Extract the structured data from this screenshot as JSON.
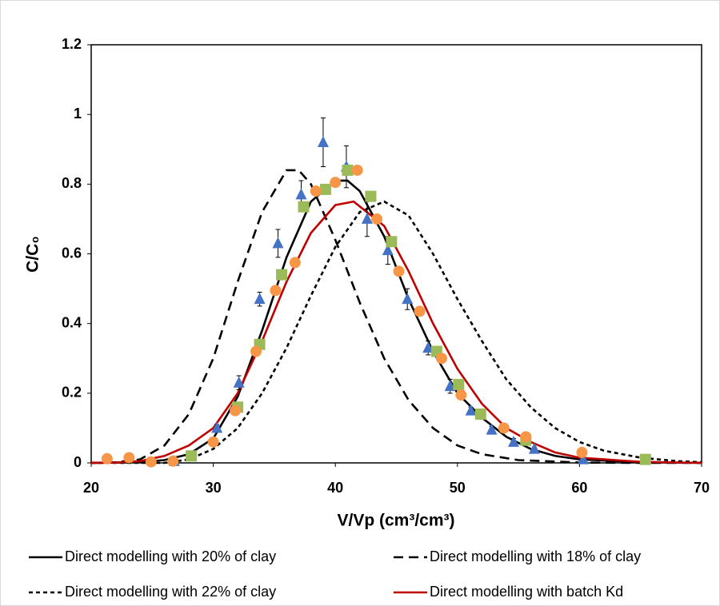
{
  "chart_data": {
    "type": "scatter-line",
    "xlabel": "V/Vp (cm³/cm³)",
    "ylabel": "C/C₀",
    "xlim": [
      20,
      70
    ],
    "xticks": [
      20,
      30,
      40,
      50,
      60,
      70
    ],
    "ylim": [
      0,
      1.2
    ],
    "yticks": [
      0,
      0.2,
      0.4,
      0.6,
      0.8,
      1,
      1.2
    ],
    "legend": "bottom",
    "series": [
      {
        "name": "Direct modelling with 20% of clay",
        "kind": "line",
        "dash": "solid",
        "color": "#000000",
        "x": [
          20,
          24,
          26,
          28,
          30,
          32,
          34,
          36,
          38,
          40,
          41,
          42,
          44,
          46,
          48,
          50,
          52,
          54,
          56,
          58,
          60,
          65,
          70
        ],
        "values": [
          0,
          0.002,
          0.008,
          0.025,
          0.07,
          0.19,
          0.38,
          0.59,
          0.75,
          0.81,
          0.81,
          0.78,
          0.65,
          0.47,
          0.32,
          0.2,
          0.13,
          0.075,
          0.04,
          0.02,
          0.01,
          0.002,
          0
        ]
      },
      {
        "name": "Direct modelling with 18% of clay",
        "kind": "line",
        "dash": "dash",
        "color": "#000000",
        "x": [
          20,
          22,
          24,
          26,
          28,
          30,
          32,
          34,
          36,
          37,
          38,
          40,
          42,
          44,
          46,
          48,
          50,
          52,
          55,
          60,
          65,
          70
        ],
        "values": [
          0,
          0.002,
          0.01,
          0.05,
          0.14,
          0.3,
          0.52,
          0.72,
          0.84,
          0.84,
          0.8,
          0.64,
          0.46,
          0.3,
          0.18,
          0.1,
          0.05,
          0.025,
          0.008,
          0.001,
          0,
          0
        ]
      },
      {
        "name": "Direct modelling with 22% of clay",
        "kind": "line",
        "dash": "short-dash",
        "color": "#000000",
        "x": [
          20,
          26,
          28,
          30,
          32,
          34,
          36,
          38,
          40,
          42,
          44,
          46,
          48,
          50,
          52,
          54,
          56,
          58,
          60,
          62,
          65,
          68,
          70
        ],
        "values": [
          0,
          0,
          0.01,
          0.04,
          0.1,
          0.2,
          0.33,
          0.48,
          0.62,
          0.72,
          0.75,
          0.71,
          0.6,
          0.47,
          0.35,
          0.24,
          0.16,
          0.1,
          0.06,
          0.035,
          0.015,
          0.005,
          0.002
        ]
      },
      {
        "name": "Direct modelling with batch Kd",
        "kind": "line",
        "dash": "solid",
        "color": "#c00000",
        "x": [
          20,
          22,
          24,
          26,
          28,
          30,
          32,
          34,
          36,
          38,
          40,
          41.5,
          44,
          46,
          48,
          50,
          52,
          54,
          56,
          58,
          60,
          65,
          70
        ],
        "values": [
          0,
          0.001,
          0.005,
          0.02,
          0.05,
          0.1,
          0.2,
          0.35,
          0.52,
          0.66,
          0.74,
          0.75,
          0.68,
          0.55,
          0.4,
          0.27,
          0.17,
          0.1,
          0.06,
          0.03,
          0.015,
          0.003,
          0
        ]
      },
      {
        "kind": "marker",
        "marker": "triangle",
        "color": "#4472c4",
        "x": [
          26.8,
          30.3,
          32.1,
          33.8,
          35.3,
          37.2,
          39.0,
          40.9,
          42.6,
          44.3,
          45.9,
          47.6,
          49.4,
          51.1,
          52.8,
          54.6,
          56.3,
          60.3
        ],
        "values": [
          0.005,
          0.1,
          0.23,
          0.47,
          0.63,
          0.77,
          0.92,
          0.85,
          0.7,
          0.61,
          0.47,
          0.33,
          0.22,
          0.15,
          0.095,
          0.06,
          0.04,
          0.01
        ],
        "errors": [
          0.005,
          0.01,
          0.02,
          0.02,
          0.04,
          0.04,
          0.07,
          0.06,
          0.05,
          0.04,
          0.03,
          0.02,
          0.02,
          0.01,
          0.01,
          0.01,
          0.005,
          0.005
        ]
      },
      {
        "kind": "marker",
        "marker": "square",
        "color": "#9bbb59",
        "x": [
          28.2,
          32.0,
          33.8,
          35.6,
          37.4,
          39.2,
          41.0,
          42.9,
          44.6,
          48.3,
          50.1,
          51.9,
          55.6,
          65.4
        ],
        "values": [
          0.02,
          0.16,
          0.34,
          0.54,
          0.735,
          0.785,
          0.84,
          0.765,
          0.635,
          0.32,
          0.225,
          0.14,
          0.065,
          0.01
        ]
      },
      {
        "kind": "marker",
        "marker": "circle",
        "color": "#f79646",
        "x": [
          21.3,
          23.1,
          24.9,
          26.7,
          30.0,
          31.8,
          33.5,
          35.1,
          36.7,
          38.4,
          40.0,
          41.8,
          43.4,
          45.2,
          46.9,
          48.7,
          50.3,
          53.8,
          55.6,
          60.2
        ],
        "values": [
          0.012,
          0.015,
          0.003,
          0.005,
          0.06,
          0.15,
          0.32,
          0.495,
          0.575,
          0.78,
          0.805,
          0.84,
          0.7,
          0.55,
          0.435,
          0.3,
          0.195,
          0.1,
          0.075,
          0.03
        ]
      }
    ]
  }
}
